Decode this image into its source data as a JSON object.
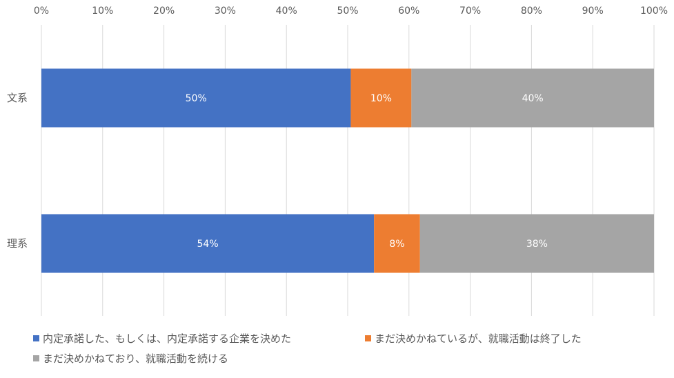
{
  "chart_data": {
    "type": "bar",
    "orientation": "horizontal",
    "stacked": "percent",
    "categories": [
      "文系",
      "理系"
    ],
    "series": [
      {
        "name": "内定承諾した、もしくは、内定承諾する企業を決めた",
        "values": [
          50.5,
          54.3
        ],
        "labels": [
          "50%",
          "54%"
        ],
        "color": "#4472C4"
      },
      {
        "name": "まだ決めかねているが、就職活動は終了した",
        "values": [
          9.9,
          7.5
        ],
        "labels": [
          "10%",
          "8%"
        ],
        "color": "#ED7D31"
      },
      {
        "name": "まだ決めかねており、就職活動を続ける",
        "values": [
          39.6,
          38.2
        ],
        "labels": [
          "40%",
          "38%"
        ],
        "color": "#A5A5A5"
      }
    ],
    "xlim": [
      0,
      100
    ],
    "xticks": [
      "0%",
      "10%",
      "20%",
      "30%",
      "40%",
      "50%",
      "60%",
      "70%",
      "80%",
      "90%",
      "100%"
    ],
    "axis_position": "top",
    "grid": true,
    "legend_position": "bottom"
  }
}
